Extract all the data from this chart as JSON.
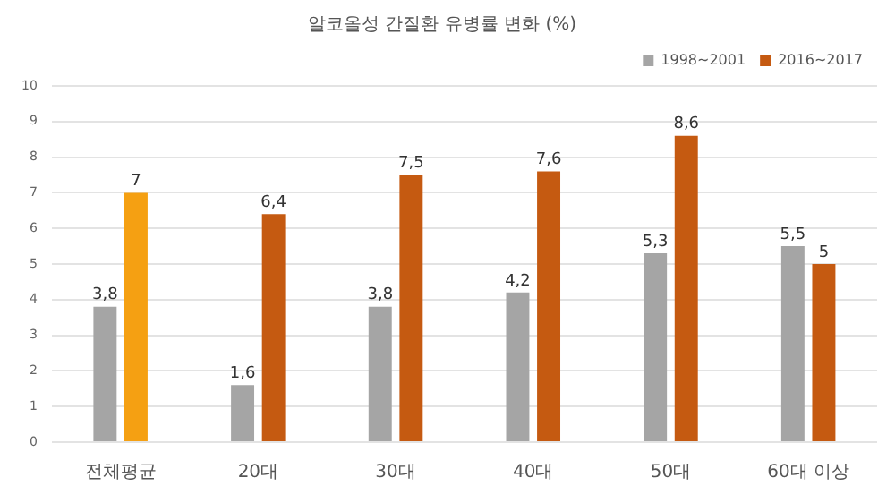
{
  "chart_data": {
    "type": "bar",
    "title": "알코올성 간질환 유병률 변화 (%)",
    "categories": [
      "전체평균",
      "20대",
      "30대",
      "40대",
      "50대",
      "60대 이상"
    ],
    "series": [
      {
        "name": "1998~2001",
        "color": "#a5a5a5",
        "values": [
          3.8,
          1.6,
          3.8,
          4.2,
          5.3,
          5.5
        ],
        "value_labels": [
          "3,8",
          "1,6",
          "3,8",
          "4,2",
          "5,3",
          "5,5"
        ]
      },
      {
        "name": "2016~2017",
        "color": "#c55a11",
        "colors": [
          "#f5a012",
          "#c55a11",
          "#c55a11",
          "#c55a11",
          "#c55a11",
          "#c55a11"
        ],
        "values": [
          7,
          6.4,
          7.5,
          7.6,
          8.6,
          5
        ],
        "value_labels": [
          "7",
          "6,4",
          "7,5",
          "7,6",
          "8,6",
          "5"
        ]
      }
    ],
    "ylim": [
      0,
      10
    ],
    "yticks": [
      0,
      1,
      2,
      3,
      4,
      5,
      6,
      7,
      8,
      9,
      10
    ],
    "grid": "y",
    "legend": "top right"
  }
}
